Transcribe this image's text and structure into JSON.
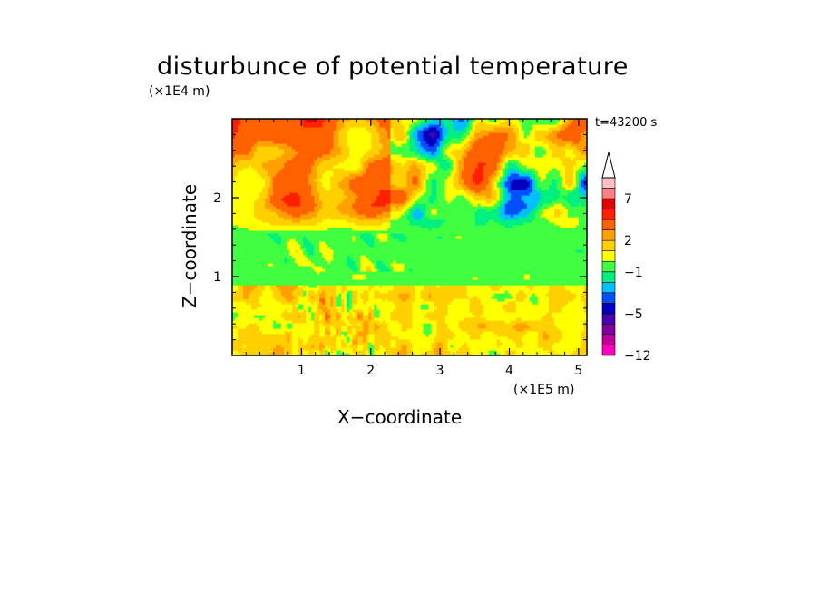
{
  "chart_data": {
    "type": "heatmap",
    "title": "disturbunce of potential temperature",
    "xlabel": "X−coordinate",
    "ylabel": "Z−coordinate",
    "x_unit": "(×1E5 m)",
    "y_unit": "(×1E4 m)",
    "time_label": "t=43200 s",
    "xlim": [
      0,
      5.12
    ],
    "ylim": [
      0,
      3.0
    ],
    "x_ticks": [
      "1",
      "2",
      "3",
      "4",
      "5"
    ],
    "x_tick_values": [
      1,
      2,
      3,
      4,
      5
    ],
    "y_ticks": [
      "1",
      "2"
    ],
    "y_tick_values": [
      1,
      2
    ],
    "colorbar": {
      "levels": [
        -12,
        -10,
        -8,
        -6,
        -5,
        -4,
        -3,
        -2,
        -1,
        0,
        1,
        2,
        3,
        5,
        6,
        7,
        8,
        9,
        10
      ],
      "labels": [
        "−12",
        "−5",
        "−1",
        "2",
        "7"
      ],
      "label_values": [
        -12,
        -5,
        -1,
        2,
        7
      ],
      "colors": [
        "#ff00c0",
        "#c0009a",
        "#8000a0",
        "#4a00b0",
        "#0000c0",
        "#0050ff",
        "#00c0ff",
        "#00f080",
        "#40ff40",
        "#ffff00",
        "#ffd000",
        "#ffa000",
        "#ff6000",
        "#ff2000",
        "#e00000",
        "#ff8080",
        "#ffc0c0"
      ],
      "extends": "max"
    },
    "field_features": [
      {
        "band": "lower layer (0 to 0.9)",
        "value_range": [
          0,
          2
        ]
      },
      {
        "band": "middle layer (0.9 to 1.5)",
        "value_range": [
          -1,
          0
        ]
      },
      {
        "band": "upper layer (1.5 to 3.0)",
        "value_range": [
          -6,
          8
        ]
      }
    ]
  }
}
